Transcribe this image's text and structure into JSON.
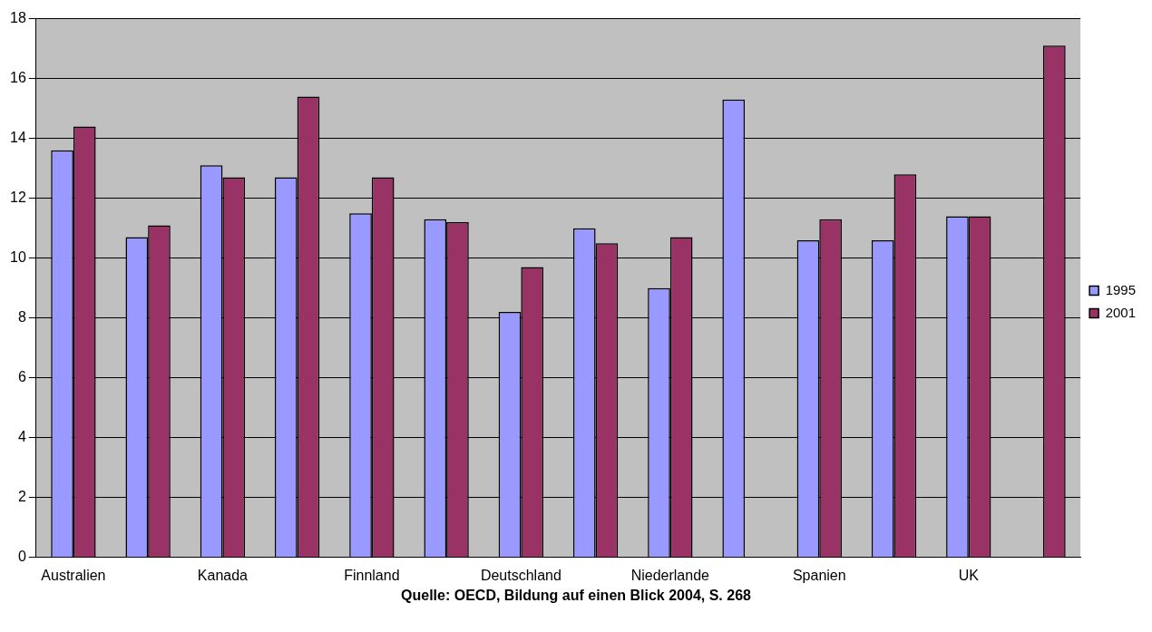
{
  "chart_data": {
    "type": "bar",
    "categories": [
      "Australien",
      null,
      "Kanada",
      null,
      "Finnland",
      null,
      "Deutschland",
      null,
      "Niederlande",
      null,
      "Spanien",
      null,
      "UK",
      null
    ],
    "series": [
      {
        "name": "1995",
        "color": "#9999ff",
        "values": [
          13.6,
          10.7,
          13.1,
          12.7,
          11.5,
          11.3,
          8.2,
          11.0,
          9.0,
          15.3,
          10.6,
          10.6,
          11.4,
          null
        ]
      },
      {
        "name": "2001",
        "color": "#993366",
        "values": [
          14.4,
          11.1,
          12.7,
          15.4,
          12.7,
          11.2,
          9.7,
          10.5,
          10.7,
          null,
          11.3,
          12.8,
          11.4,
          17.1
        ]
      }
    ],
    "ylim": [
      0,
      18
    ],
    "yticks": [
      0,
      2,
      4,
      6,
      8,
      10,
      12,
      14,
      16,
      18
    ],
    "grid": "y",
    "legend": "right",
    "annotations": [
      "Quelle: OECD, Bildung auf einen Blick 2004, S. 268"
    ]
  }
}
